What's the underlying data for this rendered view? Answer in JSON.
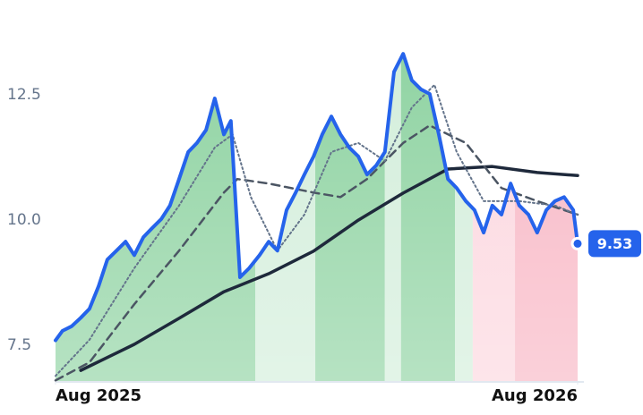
{
  "chart_data": {
    "type": "line",
    "xlim": [
      0,
      12
    ],
    "ylim": [
      6.77,
      13.68
    ],
    "xticks": [
      {
        "value": 0,
        "label": "Aug 2025"
      },
      {
        "value": 12,
        "label": "Aug 2026"
      }
    ],
    "yticks": [
      7.5,
      {
        "value": 10,
        "label": "10.0"
      },
      12.5
    ],
    "grid": false,
    "bands": [
      {
        "x": [
          0,
          4.59
        ],
        "color": "#8fd3a2"
      },
      {
        "x": [
          4.59,
          5.97
        ],
        "color": "#d3eedb"
      },
      {
        "x": [
          5.97,
          7.57
        ],
        "color": "#8fd3a2"
      },
      {
        "x": [
          7.57,
          7.94
        ],
        "color": "#d3eedb"
      },
      {
        "x": [
          7.94,
          9.18
        ],
        "color": "#8fd3a2"
      },
      {
        "x": [
          9.18,
          9.59
        ],
        "color": "#d3eedb"
      },
      {
        "x": [
          9.59,
          10.56
        ],
        "color": "#fcd7df"
      },
      {
        "x": [
          10.56,
          12
        ],
        "color": "#f8b7c5"
      }
    ],
    "series": [
      {
        "color": "#2563eb",
        "style": "solid",
        "width": 4,
        "x": [
          0,
          0.16,
          0.37,
          0.58,
          0.78,
          0.99,
          1.19,
          1.4,
          1.61,
          1.81,
          2.02,
          2.22,
          2.43,
          2.63,
          2.84,
          3.05,
          3.25,
          3.46,
          3.66,
          3.87,
          4.03,
          4.24,
          4.45,
          4.69,
          4.9,
          5.1,
          5.31,
          5.52,
          5.72,
          5.93,
          6.13,
          6.34,
          6.55,
          6.75,
          6.96,
          7.16,
          7.37,
          7.57,
          7.78,
          7.99,
          8.19,
          8.4,
          8.6,
          8.81,
          9.02,
          9.22,
          9.43,
          9.63,
          9.84,
          10.04,
          10.25,
          10.46,
          10.66,
          10.87,
          11.07,
          11.28,
          11.48,
          11.69,
          11.9,
          12
        ],
        "values": [
          7.6,
          7.79,
          7.88,
          8.05,
          8.23,
          8.68,
          9.21,
          9.39,
          9.57,
          9.3,
          9.66,
          9.84,
          10.02,
          10.29,
          10.82,
          11.36,
          11.54,
          11.8,
          12.43,
          11.71,
          11.98,
          8.86,
          9.04,
          9.3,
          9.57,
          9.39,
          10.2,
          10.55,
          10.91,
          11.27,
          11.71,
          12.07,
          11.71,
          11.45,
          11.27,
          10.91,
          11.09,
          11.36,
          12.96,
          13.32,
          12.79,
          12.61,
          12.52,
          11.71,
          10.82,
          10.64,
          10.38,
          10.2,
          9.75,
          10.29,
          10.11,
          10.73,
          10.29,
          10.11,
          9.75,
          10.2,
          10.38,
          10.46,
          10.2,
          9.53
        ]
      },
      {
        "color": "#64748b",
        "style": "dotted",
        "width": 2,
        "x": [
          0,
          0.78,
          1.81,
          2.84,
          3.66,
          4.07,
          4.49,
          5.1,
          5.72,
          6.34,
          6.96,
          7.57,
          8.19,
          8.71,
          9.22,
          9.84,
          10.66,
          11.48,
          12
        ],
        "values": [
          6.89,
          7.61,
          9.04,
          10.29,
          11.45,
          11.71,
          10.46,
          9.39,
          10.11,
          11.36,
          11.54,
          11.18,
          12.25,
          12.7,
          11.36,
          10.38,
          10.38,
          10.29,
          10.11
        ]
      },
      {
        "color": "#4b5563",
        "style": "dashed",
        "width": 2.5,
        "x": [
          0,
          0.78,
          1.81,
          2.84,
          3.87,
          4.18,
          4.9,
          5.93,
          6.55,
          7.16,
          7.99,
          8.6,
          9.43,
          10.25,
          11.07,
          12
        ],
        "values": [
          6.8,
          7.16,
          8.32,
          9.39,
          10.55,
          10.82,
          10.73,
          10.55,
          10.46,
          10.82,
          11.54,
          11.89,
          11.54,
          10.64,
          10.38,
          10.11
        ]
      },
      {
        "color": "#1e293b",
        "style": "solid",
        "width": 3.5,
        "x": [
          0.58,
          1.81,
          2.84,
          3.87,
          4.9,
          5.93,
          6.96,
          7.99,
          9.02,
          10.04,
          11.07,
          12
        ],
        "values": [
          7.0,
          7.52,
          8.04,
          8.57,
          8.93,
          9.38,
          10.0,
          10.54,
          11.02,
          11.07,
          10.95,
          10.89
        ]
      }
    ]
  }
}
